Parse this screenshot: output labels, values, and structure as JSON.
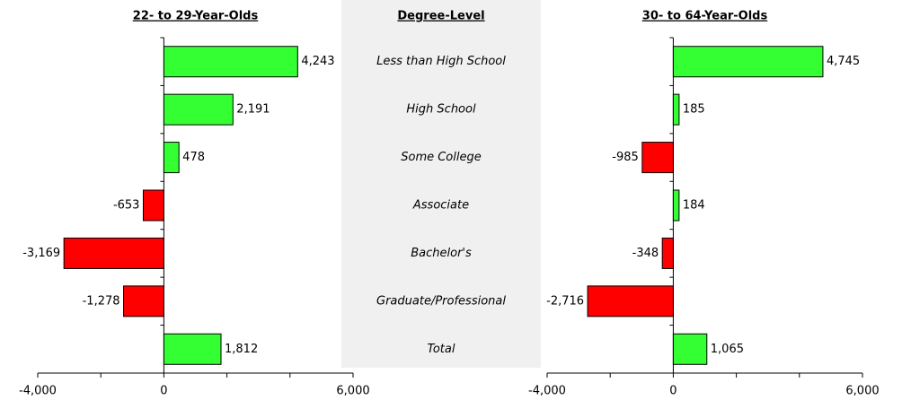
{
  "category_title": "Degree-Level",
  "chart_data": [
    {
      "type": "hbar",
      "title": "22- to 29-Year-Olds",
      "categories": [
        "Less than High School",
        "High School",
        "Some College",
        "Associate",
        "Bachelor's",
        "Graduate/Professional",
        "Total"
      ],
      "values": [
        4243,
        2191,
        478,
        -653,
        -3169,
        -1278,
        1812
      ],
      "value_labels": [
        "4,243",
        "2,191",
        "478",
        "-653",
        "-3,169",
        "-1,278",
        "1,812"
      ],
      "positive_color": "#33ff33",
      "negative_color": "#ff0000",
      "xlim": [
        -4000,
        6000
      ],
      "xticks": [
        {
          "value": -4000,
          "label": "-4,000"
        },
        0,
        {
          "value": 6000,
          "label": "6,000"
        }
      ],
      "minor_xticks": [
        -2000,
        2000,
        4000
      ]
    },
    {
      "type": "hbar",
      "title": "30- to 64-Year-Olds",
      "values": [
        4745,
        185,
        -985,
        184,
        -348,
        -2716,
        1065
      ],
      "value_labels": [
        "4,745",
        "185",
        "-985",
        "184",
        "-348",
        "-2,716",
        "1,065"
      ],
      "positive_color": "#33ff33",
      "negative_color": "#ff0000",
      "xlim": [
        -4000,
        6000
      ],
      "xticks": [
        {
          "value": -4000,
          "label": "-4,000"
        },
        0,
        {
          "value": 6000,
          "label": "6,000"
        }
      ],
      "minor_xticks": [
        -2000,
        2000,
        4000
      ]
    }
  ]
}
